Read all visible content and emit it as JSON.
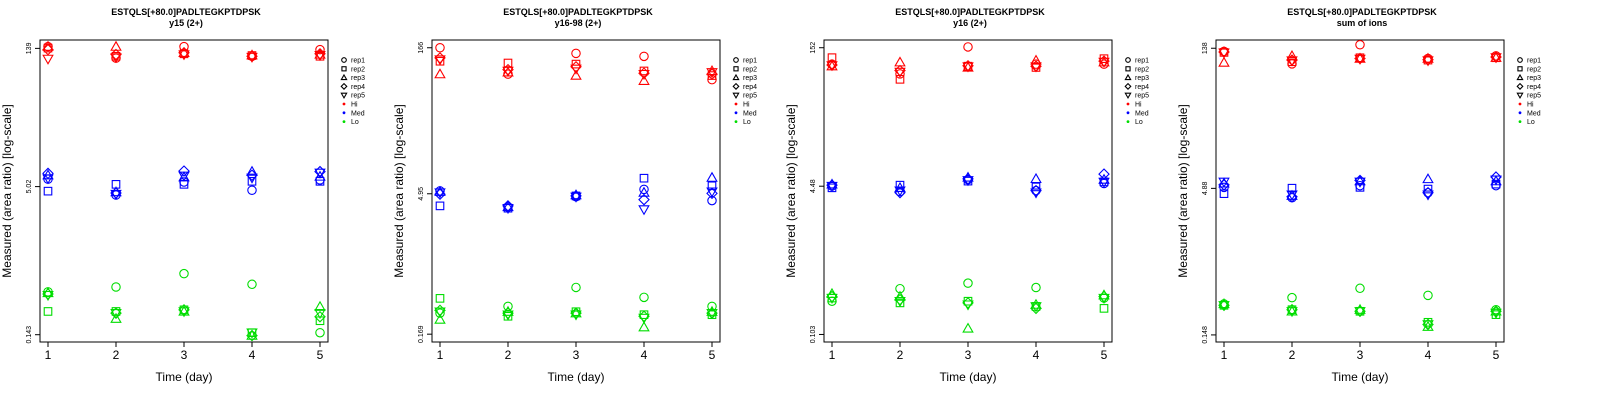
{
  "chart_data": [
    {
      "type": "scatter",
      "title": "ESTQLS[+80.0]PADLTEGKPTDPSK",
      "subtitle": "y15 (2+)",
      "xlabel": "Time (day)",
      "ylabel": "Measured (area ratio) [log-scale]",
      "x_ticks": [
        "1",
        "2",
        "3",
        "4",
        "5"
      ],
      "y_tick_labels": [
        "0.143",
        "5.02",
        "139"
      ],
      "y_tick_values": [
        0.143,
        5.02,
        139
      ],
      "ylim": [
        0.12,
        170
      ],
      "y_scale": "log",
      "grid": false,
      "legend_position": "right",
      "series": [
        {
          "group": "Hi",
          "rep": "rep1",
          "values": [
            145,
            110,
            145,
            115,
            135
          ]
        },
        {
          "group": "Hi",
          "rep": "rep2",
          "values": [
            140,
            115,
            122,
            117,
            115
          ]
        },
        {
          "group": "Hi",
          "rep": "rep3",
          "values": [
            145,
            145,
            125,
            118,
            120
          ]
        },
        {
          "group": "Hi",
          "rep": "rep4",
          "values": [
            135,
            120,
            125,
            115,
            122
          ]
        },
        {
          "group": "Hi",
          "rep": "rep5",
          "values": [
            108,
            112,
            120,
            113,
            118
          ]
        },
        {
          "group": "Med",
          "rep": "rep1",
          "values": [
            6.0,
            4.1,
            5.6,
            4.6,
            5.9
          ]
        },
        {
          "group": "Med",
          "rep": "rep2",
          "values": [
            4.5,
            5.3,
            5.3,
            5.7,
            5.7
          ]
        },
        {
          "group": "Med",
          "rep": "rep3",
          "values": [
            6.6,
            4.4,
            6.3,
            7.2,
            6.4
          ]
        },
        {
          "group": "Med",
          "rep": "rep4",
          "values": [
            6.9,
            4.3,
            7.3,
            6.6,
            7.2
          ]
        },
        {
          "group": "Med",
          "rep": "rep5",
          "values": [
            6.1,
            4.2,
            6.5,
            6.2,
            7.0
          ]
        },
        {
          "group": "Lo",
          "rep": "rep1",
          "values": [
            0.4,
            0.45,
            0.62,
            0.48,
            0.15
          ]
        },
        {
          "group": "Lo",
          "rep": "rep2",
          "values": [
            0.25,
            0.25,
            0.26,
            0.15,
            0.2
          ]
        },
        {
          "group": "Lo",
          "rep": "rep3",
          "values": [
            0.39,
            0.21,
            0.25,
            0.14,
            0.28
          ]
        },
        {
          "group": "Lo",
          "rep": "rep4",
          "values": [
            0.38,
            0.24,
            0.26,
            0.14,
            0.22
          ]
        },
        {
          "group": "Lo",
          "rep": "rep5",
          "values": [
            0.37,
            0.24,
            0.25,
            0.15,
            0.24
          ]
        }
      ]
    },
    {
      "type": "scatter",
      "title": "ESTQLS[+80.0]PADLTEGKPTDPSK",
      "subtitle": "y16-98 (2+)",
      "xlabel": "Time (day)",
      "ylabel": "Measured (area ratio) [log-scale]",
      "x_ticks": [
        "1",
        "2",
        "3",
        "4",
        "5"
      ],
      "y_tick_labels": [
        "0.169",
        "4.95",
        "166"
      ],
      "y_tick_values": [
        0.169,
        4.95,
        166
      ],
      "ylim": [
        0.14,
        200
      ],
      "y_scale": "log",
      "grid": false,
      "legend_position": "right",
      "series": [
        {
          "group": "Hi",
          "rep": "rep1",
          "values": [
            166,
            88,
            145,
            135,
            77
          ]
        },
        {
          "group": "Hi",
          "rep": "rep2",
          "values": [
            120,
            115,
            112,
            95,
            85
          ]
        },
        {
          "group": "Hi",
          "rep": "rep3",
          "values": [
            88,
            92,
            85,
            75,
            95
          ]
        },
        {
          "group": "Hi",
          "rep": "rep4",
          "values": [
            130,
            98,
            105,
            90,
            88
          ]
        },
        {
          "group": "Hi",
          "rep": "rep5",
          "values": [
            125,
            95,
            100,
            88,
            92
          ]
        },
        {
          "group": "Med",
          "rep": "rep1",
          "values": [
            5.3,
            3.6,
            4.6,
            5.5,
            4.2
          ]
        },
        {
          "group": "Med",
          "rep": "rep2",
          "values": [
            3.7,
            3.5,
            4.7,
            7.2,
            6.0
          ]
        },
        {
          "group": "Med",
          "rep": "rep3",
          "values": [
            5.2,
            3.6,
            4.8,
            5.1,
            7.3
          ]
        },
        {
          "group": "Med",
          "rep": "rep4",
          "values": [
            4.9,
            3.7,
            4.7,
            4.3,
            5.0
          ]
        },
        {
          "group": "Med",
          "rep": "rep5",
          "values": [
            5.1,
            3.5,
            4.6,
            3.4,
            5.2
          ]
        },
        {
          "group": "Lo",
          "rep": "rep1",
          "values": [
            0.28,
            0.33,
            0.52,
            0.41,
            0.33
          ]
        },
        {
          "group": "Lo",
          "rep": "rep2",
          "values": [
            0.4,
            0.26,
            0.29,
            0.27,
            0.27
          ]
        },
        {
          "group": "Lo",
          "rep": "rep3",
          "values": [
            0.24,
            0.29,
            0.28,
            0.2,
            0.29
          ]
        },
        {
          "group": "Lo",
          "rep": "rep4",
          "values": [
            0.3,
            0.28,
            0.28,
            0.26,
            0.28
          ]
        },
        {
          "group": "Lo",
          "rep": "rep5",
          "values": [
            0.29,
            0.27,
            0.27,
            0.25,
            0.28
          ]
        }
      ]
    },
    {
      "type": "scatter",
      "title": "ESTQLS[+80.0]PADLTEGKPTDPSK",
      "subtitle": "y16 (2+)",
      "xlabel": "Time (day)",
      "ylabel": "Measured (area ratio) [log-scale]",
      "x_ticks": [
        "1",
        "2",
        "3",
        "4",
        "5"
      ],
      "y_tick_labels": [
        "0.103",
        "4.48",
        "152"
      ],
      "y_tick_values": [
        0.103,
        4.48,
        152
      ],
      "ylim": [
        0.085,
        185
      ],
      "y_scale": "log",
      "grid": false,
      "legend_position": "right",
      "series": [
        {
          "group": "Hi",
          "rep": "rep1",
          "values": [
            100,
            78,
            155,
            100,
            100
          ]
        },
        {
          "group": "Hi",
          "rep": "rep2",
          "values": [
            118,
            68,
            95,
            92,
            115
          ]
        },
        {
          "group": "Hi",
          "rep": "rep3",
          "values": [
            95,
            105,
            92,
            110,
            105
          ]
        },
        {
          "group": "Hi",
          "rep": "rep4",
          "values": [
            98,
            85,
            96,
            95,
            108
          ]
        },
        {
          "group": "Hi",
          "rep": "rep5",
          "values": [
            97,
            82,
            94,
            94,
            106
          ]
        },
        {
          "group": "Med",
          "rep": "rep1",
          "values": [
            4.5,
            3.9,
            5.3,
            4.0,
            4.8
          ]
        },
        {
          "group": "Med",
          "rep": "rep2",
          "values": [
            4.3,
            4.6,
            5.1,
            4.4,
            5.0
          ]
        },
        {
          "group": "Med",
          "rep": "rep3",
          "values": [
            4.7,
            4.3,
            5.6,
            5.4,
            5.3
          ]
        },
        {
          "group": "Med",
          "rep": "rep4",
          "values": [
            4.6,
            3.8,
            5.4,
            4.0,
            6.1
          ]
        },
        {
          "group": "Med",
          "rep": "rep5",
          "values": [
            4.5,
            4.0,
            5.2,
            3.8,
            5.0
          ]
        },
        {
          "group": "Lo",
          "rep": "rep1",
          "values": [
            0.24,
            0.33,
            0.38,
            0.34,
            0.26
          ]
        },
        {
          "group": "Lo",
          "rep": "rep2",
          "values": [
            0.26,
            0.23,
            0.24,
            0.21,
            0.2
          ]
        },
        {
          "group": "Lo",
          "rep": "rep3",
          "values": [
            0.29,
            0.27,
            0.12,
            0.22,
            0.28
          ]
        },
        {
          "group": "Lo",
          "rep": "rep4",
          "values": [
            0.27,
            0.25,
            0.23,
            0.2,
            0.27
          ]
        },
        {
          "group": "Lo",
          "rep": "rep5",
          "values": [
            0.26,
            0.24,
            0.22,
            0.21,
            0.26
          ]
        }
      ]
    },
    {
      "type": "scatter",
      "title": "ESTQLS[+80.0]PADLTEGKPTDPSK",
      "subtitle": "sum of ions",
      "xlabel": "Time (day)",
      "ylabel": "Measured (area ratio) [log-scale]",
      "x_ticks": [
        "1",
        "2",
        "3",
        "4",
        "5"
      ],
      "y_tick_labels": [
        "0.148",
        "4.88",
        "138"
      ],
      "y_tick_values": [
        0.148,
        4.88,
        138
      ],
      "ylim": [
        0.125,
        168
      ],
      "y_scale": "log",
      "grid": false,
      "legend_position": "right",
      "series": [
        {
          "group": "Hi",
          "rep": "rep1",
          "values": [
            128,
            95,
            150,
            108,
            115
          ]
        },
        {
          "group": "Hi",
          "rep": "rep2",
          "values": [
            125,
            100,
            110,
            104,
            110
          ]
        },
        {
          "group": "Hi",
          "rep": "rep3",
          "values": [
            98,
            115,
            108,
            108,
            110
          ]
        },
        {
          "group": "Hi",
          "rep": "rep4",
          "values": [
            126,
            104,
            108,
            105,
            112
          ]
        },
        {
          "group": "Hi",
          "rep": "rep5",
          "values": [
            124,
            103,
            107,
            103,
            111
          ]
        },
        {
          "group": "Med",
          "rep": "rep1",
          "values": [
            5.0,
            3.9,
            5.2,
            4.4,
            5.2
          ]
        },
        {
          "group": "Med",
          "rep": "rep2",
          "values": [
            4.3,
            4.9,
            5.0,
            4.8,
            5.4
          ]
        },
        {
          "group": "Med",
          "rep": "rep3",
          "values": [
            5.5,
            4.1,
            5.8,
            6.1,
            5.8
          ]
        },
        {
          "group": "Med",
          "rep": "rep4",
          "values": [
            5.3,
            4.0,
            5.9,
            4.4,
            6.4
          ]
        },
        {
          "group": "Med",
          "rep": "rep5",
          "values": [
            5.7,
            4.2,
            5.7,
            4.2,
            6.0
          ]
        },
        {
          "group": "Lo",
          "rep": "rep1",
          "values": [
            0.31,
            0.36,
            0.45,
            0.38,
            0.27
          ]
        },
        {
          "group": "Lo",
          "rep": "rep2",
          "values": [
            0.3,
            0.27,
            0.26,
            0.2,
            0.24
          ]
        },
        {
          "group": "Lo",
          "rep": "rep3",
          "values": [
            0.31,
            0.26,
            0.27,
            0.18,
            0.26
          ]
        },
        {
          "group": "Lo",
          "rep": "rep4",
          "values": [
            0.3,
            0.27,
            0.26,
            0.19,
            0.26
          ]
        },
        {
          "group": "Lo",
          "rep": "rep5",
          "values": [
            0.3,
            0.26,
            0.26,
            0.19,
            0.25
          ]
        }
      ]
    }
  ],
  "legend": {
    "reps": [
      {
        "label": "rep1",
        "shape": "circle"
      },
      {
        "label": "rep2",
        "shape": "square"
      },
      {
        "label": "rep3",
        "shape": "triangle-up"
      },
      {
        "label": "rep4",
        "shape": "diamond"
      },
      {
        "label": "rep5",
        "shape": "triangle-down"
      }
    ],
    "groups": [
      {
        "label": "Hi",
        "color": "#ff0000"
      },
      {
        "label": "Med",
        "color": "#0000ff"
      },
      {
        "label": "Lo",
        "color": "#00dd00"
      }
    ]
  }
}
